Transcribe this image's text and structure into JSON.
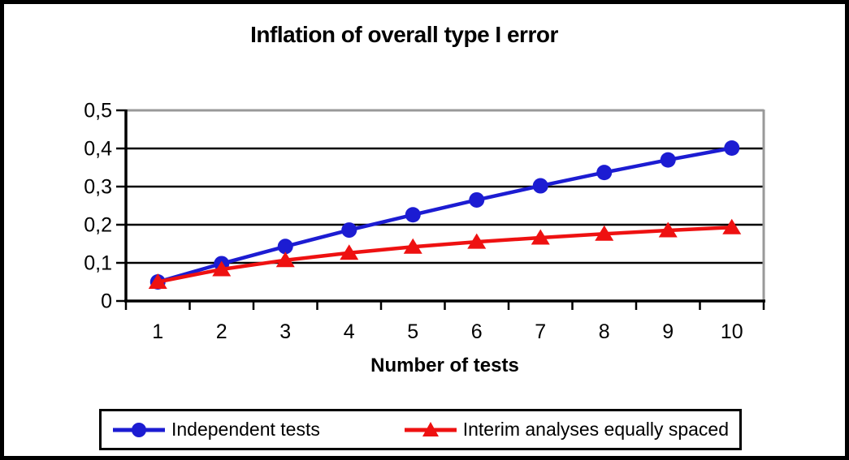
{
  "chart_data": {
    "type": "line",
    "title": "Inflation of overall type I error",
    "xlabel": "Number of tests",
    "ylabel": "",
    "categories": [
      1,
      2,
      3,
      4,
      5,
      6,
      7,
      8,
      9,
      10
    ],
    "x_tick_labels": [
      "1",
      "2",
      "3",
      "4",
      "5",
      "6",
      "7",
      "8",
      "9",
      "10"
    ],
    "y_ticks": [
      0,
      0.1,
      0.2,
      0.3,
      0.4,
      0.5
    ],
    "y_tick_labels": [
      "0",
      "0,1",
      "0,2",
      "0,3",
      "0,4",
      "0,5"
    ],
    "ylim": [
      0,
      0.5
    ],
    "grid": true,
    "legend_position": "bottom",
    "series": [
      {
        "name": "Independent tests",
        "marker": "circle",
        "color": "#1C1CD2",
        "values": [
          0.05,
          0.098,
          0.143,
          0.186,
          0.226,
          0.265,
          0.302,
          0.337,
          0.37,
          0.401
        ]
      },
      {
        "name": "Interim analyses equally spaced",
        "marker": "triangle",
        "color": "#EE1111",
        "values": [
          0.05,
          0.083,
          0.107,
          0.126,
          0.142,
          0.155,
          0.166,
          0.176,
          0.185,
          0.193
        ]
      }
    ]
  },
  "colors": {
    "background": "#FFFFFF",
    "outer_border": "#000000",
    "gridline": "#000000",
    "plot_top_border": "#999999",
    "plot_right_border": "#999999",
    "axis": "#000000",
    "text": "#000000"
  }
}
